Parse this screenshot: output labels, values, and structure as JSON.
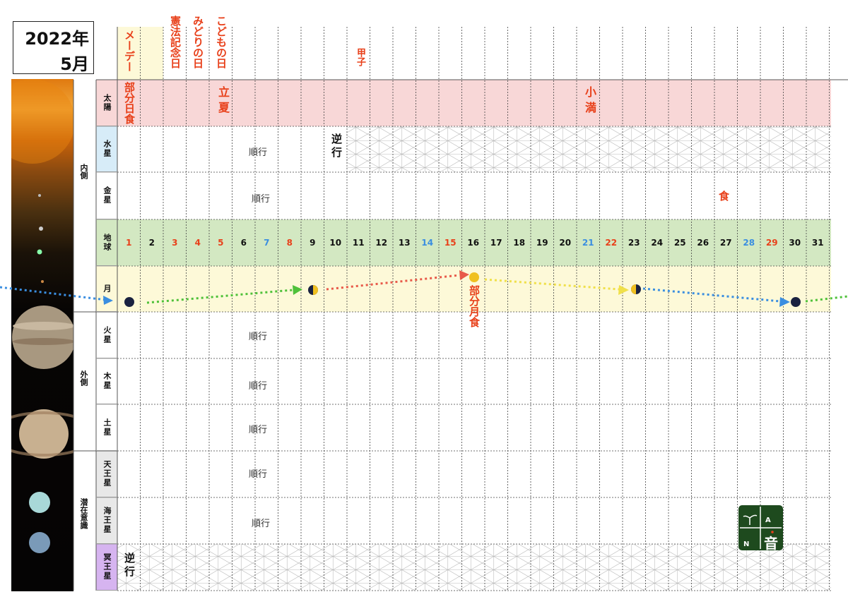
{
  "header": {
    "year": "2022年",
    "month": "5月"
  },
  "groups": {
    "inner": "内側",
    "outer": "外側",
    "subconscious": "潜在意識"
  },
  "rows": [
    {
      "id": "sun",
      "label": "太陽",
      "bg": "#f8d7d7"
    },
    {
      "id": "mercury",
      "label": "水星",
      "bg": "#d7ecf8"
    },
    {
      "id": "venus",
      "label": "金星",
      "bg": "#ffffff"
    },
    {
      "id": "earth",
      "label": "地球",
      "bg": "#d3e8c2"
    },
    {
      "id": "moon",
      "label": "月",
      "bg": "#fdf9d8"
    },
    {
      "id": "mars",
      "label": "火星",
      "bg": "#ffffff"
    },
    {
      "id": "jupiter",
      "label": "木星",
      "bg": "#ffffff"
    },
    {
      "id": "saturn",
      "label": "土星",
      "bg": "#ffffff"
    },
    {
      "id": "uranus",
      "label": "天王星",
      "bg": "#e8e8e8"
    },
    {
      "id": "neptune",
      "label": "海王星",
      "bg": "#e8e8e8"
    },
    {
      "id": "pluto",
      "label": "冥王星",
      "bg": "#d6b4f0"
    }
  ],
  "days": [
    {
      "n": "1",
      "color": "#e8401a"
    },
    {
      "n": "2",
      "color": "#111"
    },
    {
      "n": "3",
      "color": "#e8401a"
    },
    {
      "n": "4",
      "color": "#e8401a"
    },
    {
      "n": "5",
      "color": "#e8401a"
    },
    {
      "n": "6",
      "color": "#111"
    },
    {
      "n": "7",
      "color": "#3a8ee0"
    },
    {
      "n": "8",
      "color": "#e8401a"
    },
    {
      "n": "9",
      "color": "#111"
    },
    {
      "n": "10",
      "color": "#111"
    },
    {
      "n": "11",
      "color": "#111"
    },
    {
      "n": "12",
      "color": "#111"
    },
    {
      "n": "13",
      "color": "#111"
    },
    {
      "n": "14",
      "color": "#3a8ee0"
    },
    {
      "n": "15",
      "color": "#e8401a"
    },
    {
      "n": "16",
      "color": "#111"
    },
    {
      "n": "17",
      "color": "#111"
    },
    {
      "n": "18",
      "color": "#111"
    },
    {
      "n": "19",
      "color": "#111"
    },
    {
      "n": "20",
      "color": "#111"
    },
    {
      "n": "21",
      "color": "#3a8ee0"
    },
    {
      "n": "22",
      "color": "#e8401a"
    },
    {
      "n": "23",
      "color": "#111"
    },
    {
      "n": "24",
      "color": "#111"
    },
    {
      "n": "25",
      "color": "#111"
    },
    {
      "n": "26",
      "color": "#111"
    },
    {
      "n": "27",
      "color": "#111"
    },
    {
      "n": "28",
      "color": "#3a8ee0"
    },
    {
      "n": "29",
      "color": "#e8401a"
    },
    {
      "n": "30",
      "color": "#111"
    },
    {
      "n": "31",
      "color": "#111"
    }
  ],
  "holidays": {
    "mayday": "メーデー",
    "constitution": "憲法記念日",
    "greenery": "みどりの日",
    "children": "こどもの日",
    "kinoene": "甲子"
  },
  "events": {
    "partial_solar_eclipse": "部分日食",
    "rikka": "立夏",
    "shoman": "小満",
    "mercury_retro": "逆行",
    "venus_eclipse": "食",
    "partial_lunar_eclipse": "部分月食",
    "pluto_retro": "逆行"
  },
  "status": {
    "mercury": "順行",
    "venus": "順行",
    "mars": "順行",
    "jupiter": "順行",
    "saturn": "順行",
    "uranus": "順行",
    "neptune": "順行"
  },
  "logo": {
    "a": "A",
    "n": "N",
    "kanji": "音"
  },
  "colors": {
    "blue_arrow": "#3a8ee0",
    "green_arrow": "#4fc13a",
    "red_arrow": "#e85a4a",
    "yellow_arrow": "#f0e04a"
  }
}
